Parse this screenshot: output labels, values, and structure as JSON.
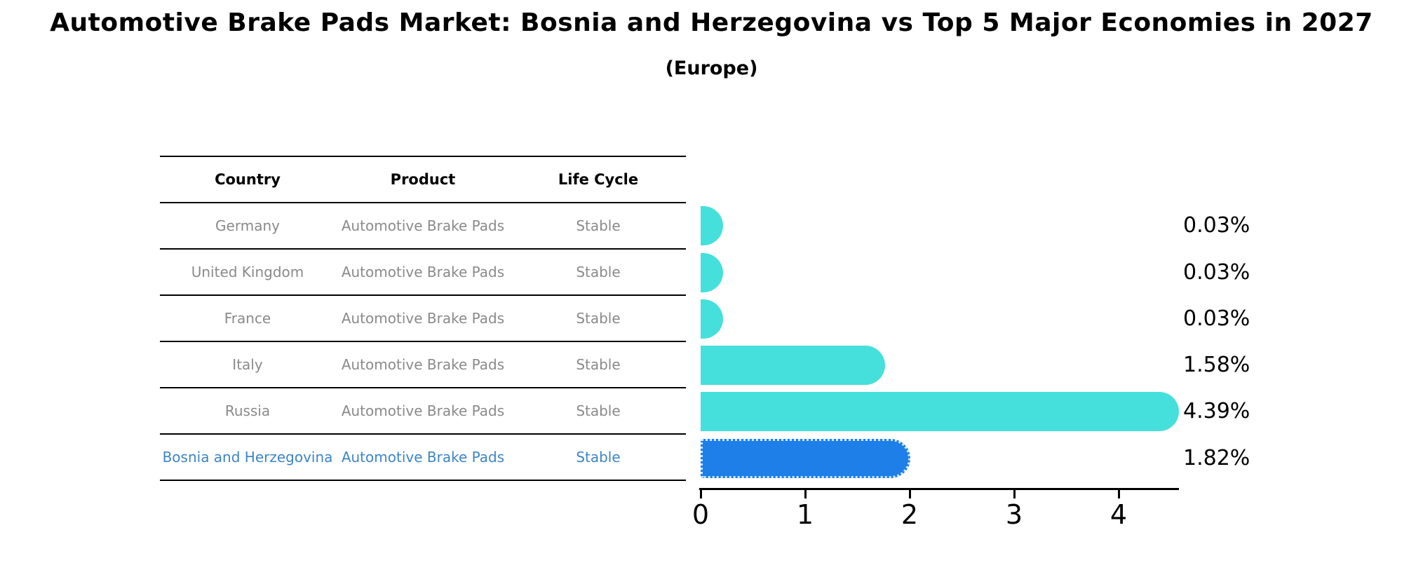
{
  "title": "Automotive Brake Pads Market: Bosnia and Herzegovina vs Top 5 Major Economies in 2027",
  "subtitle": "(Europe)",
  "table": {
    "headers": [
      "Country",
      "Product",
      "Life Cycle"
    ],
    "rows": [
      {
        "country": "Germany",
        "product": "Automotive Brake Pads",
        "life_cycle": "Stable"
      },
      {
        "country": "United Kingdom",
        "product": "Automotive Brake Pads",
        "life_cycle": "Stable"
      },
      {
        "country": "France",
        "product": "Automotive Brake Pads",
        "life_cycle": "Stable"
      },
      {
        "country": "Italy",
        "product": "Automotive Brake Pads",
        "life_cycle": "Stable"
      },
      {
        "country": "Russia",
        "product": "Automotive Brake Pads",
        "life_cycle": "Stable"
      },
      {
        "country": "Bosnia and Herzegovina",
        "product": "Automotive Brake Pads",
        "life_cycle": "Stable"
      }
    ]
  },
  "chart_data": {
    "type": "bar",
    "orientation": "horizontal",
    "title": "Automotive Brake Pads Market: Bosnia and Herzegovina vs Top 5 Major Economies in 2027",
    "subtitle": "(Europe)",
    "categories": [
      "Germany",
      "United Kingdom",
      "France",
      "Italy",
      "Russia",
      "Bosnia and Herzegovina"
    ],
    "values": [
      0.03,
      0.03,
      0.03,
      1.58,
      4.39,
      1.82
    ],
    "value_labels": [
      "0.03%",
      "0.03%",
      "0.03%",
      "1.58%",
      "4.39%",
      "1.82%"
    ],
    "highlight_index": 5,
    "xticks": [
      0,
      1,
      2,
      3,
      4
    ],
    "xlim": [
      0,
      4.55
    ],
    "grid": false,
    "legend": null,
    "xlabel": "",
    "ylabel": ""
  },
  "colors": {
    "bar": "#45E0DB",
    "highlight_bar": "#1E7FE8",
    "highlight_text": "#3d85c6",
    "text": "#000000",
    "row_text": "#8a8a8a"
  }
}
